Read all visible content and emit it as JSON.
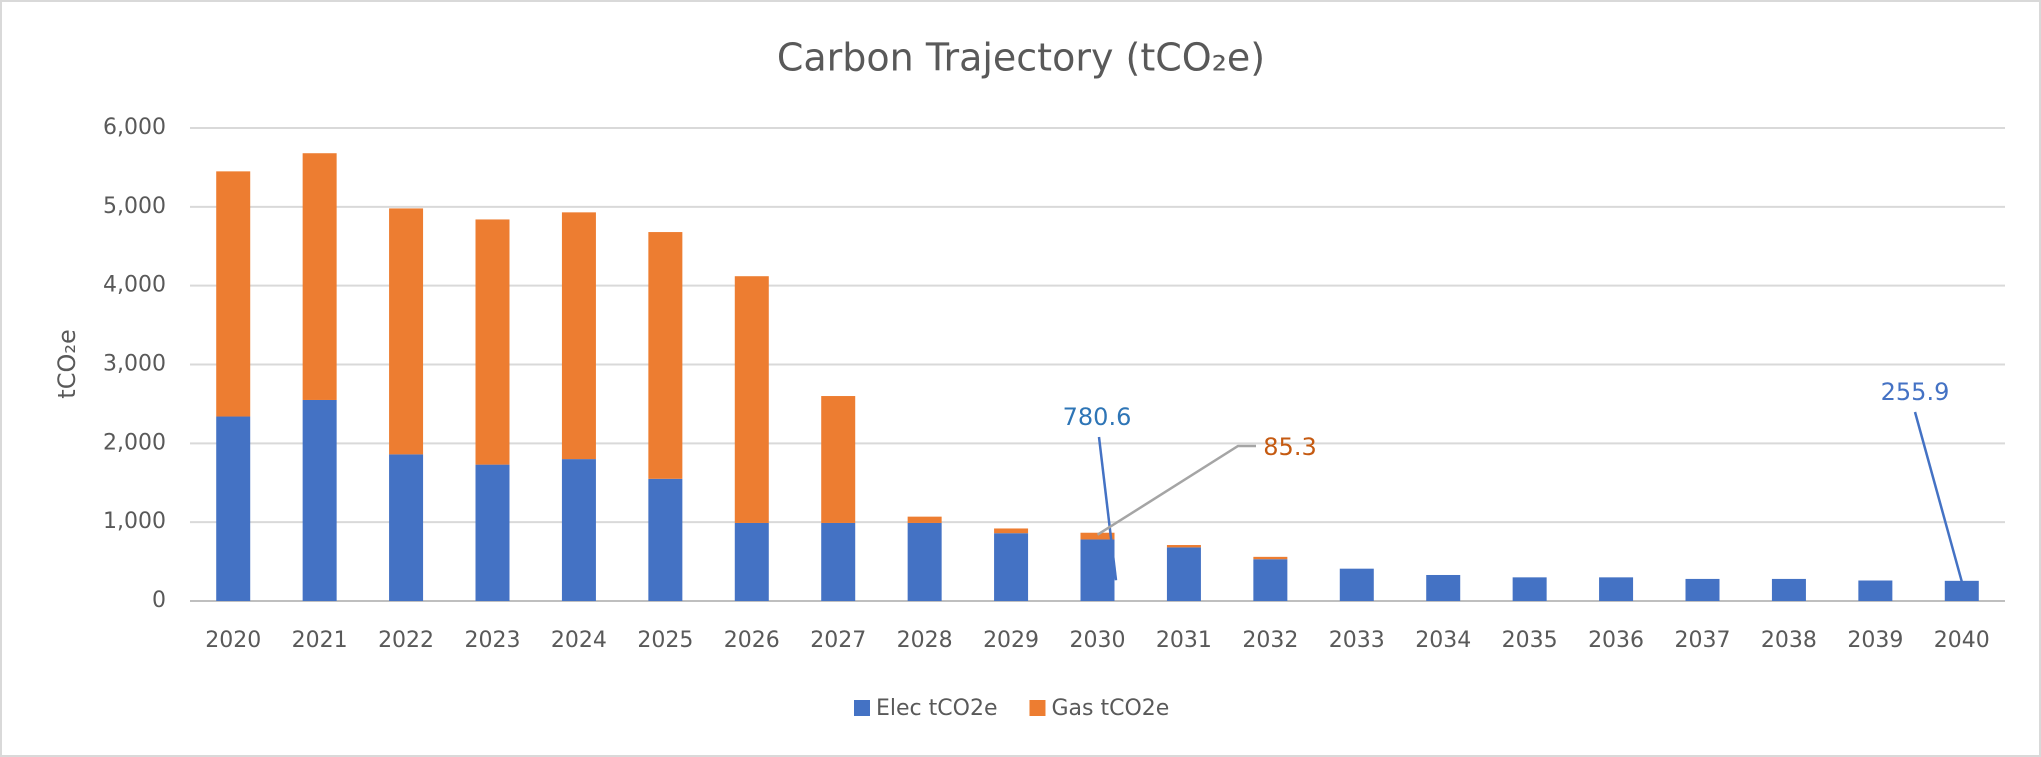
{
  "chart_data": {
    "type": "stacked_bar",
    "title": "Carbon Trajectory (tCO₂e)",
    "y_label": "tCO₂e",
    "categories": [
      "2020",
      "2021",
      "2022",
      "2023",
      "2024",
      "2025",
      "2026",
      "2027",
      "2028",
      "2029",
      "2030",
      "2031",
      "2032",
      "2033",
      "2034",
      "2035",
      "2036",
      "2037",
      "2038",
      "2039",
      "2040"
    ],
    "series": [
      {
        "name": "Elec tCO2e",
        "color": "#4472c4",
        "values": [
          2340,
          2550,
          1860,
          1730,
          1800,
          1550,
          990,
          990,
          990,
          860,
          780.6,
          680,
          530,
          410,
          330,
          300,
          300,
          280,
          280,
          260,
          255.9
        ]
      },
      {
        "name": "Gas tCO2e",
        "color": "#ed7d31",
        "values": [
          3110,
          3130,
          3120,
          3110,
          3130,
          3130,
          3130,
          1610,
          80,
          60,
          85.3,
          30,
          30,
          0,
          0,
          0,
          0,
          0,
          0,
          0,
          0
        ]
      }
    ],
    "ylim": [
      0,
      6000
    ],
    "yticks": [
      0,
      {
        "value": 1000,
        "label": "1,000"
      },
      {
        "value": 2000,
        "label": "2,000"
      },
      {
        "value": 3000,
        "label": "3,000"
      },
      {
        "value": 4000,
        "label": "4,000"
      },
      {
        "value": 5000,
        "label": "5,000"
      },
      {
        "value": 6000,
        "label": "6,000"
      }
    ],
    "grid": true,
    "legend": "bottom"
  }
}
